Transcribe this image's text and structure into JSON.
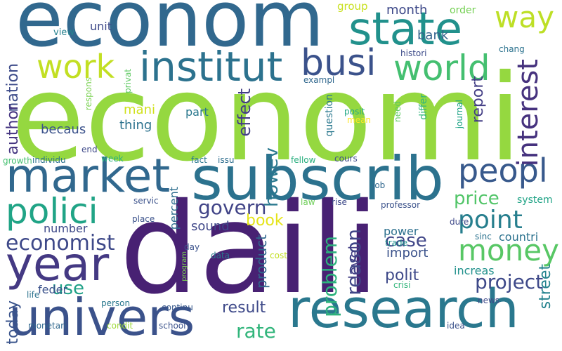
{
  "words": [
    {
      "text": "econom",
      "color": "#31688e",
      "vertical": false
    },
    {
      "text": "economi",
      "color": "#95d840",
      "vertical": false
    },
    {
      "text": "daili",
      "color": "#482173",
      "vertical": false
    },
    {
      "text": "subscrib",
      "color": "#2c728e",
      "vertical": false
    },
    {
      "text": "research",
      "color": "#2a788e",
      "vertical": false
    },
    {
      "text": "univers",
      "color": "#3b528b",
      "vertical": false
    },
    {
      "text": "market",
      "color": "#31688e",
      "vertical": false
    },
    {
      "text": "state",
      "color": "#21918c",
      "vertical": false
    },
    {
      "text": "institut",
      "color": "#2c728e",
      "vertical": false
    },
    {
      "text": "year",
      "color": "#443983",
      "vertical": false
    },
    {
      "text": "polici",
      "color": "#20a486",
      "vertical": false
    },
    {
      "text": "busi",
      "color": "#3b528b",
      "vertical": false
    },
    {
      "text": "work",
      "color": "#c2df23",
      "vertical": false
    },
    {
      "text": "world",
      "color": "#44bf70",
      "vertical": false
    },
    {
      "text": "way",
      "color": "#bddf26",
      "vertical": false
    },
    {
      "text": "peopl",
      "color": "#38598c",
      "vertical": false
    },
    {
      "text": "money",
      "color": "#58c765",
      "vertical": false
    },
    {
      "text": "interest",
      "color": "#46327e",
      "vertical": true
    },
    {
      "text": "point",
      "color": "#277f8e",
      "vertical": false
    },
    {
      "text": "economist",
      "color": "#3e4989",
      "vertical": false
    },
    {
      "text": "govern",
      "color": "#414487",
      "vertical": false
    },
    {
      "text": "price",
      "color": "#52c569",
      "vertical": false
    },
    {
      "text": "rate",
      "color": "#31b57b",
      "vertical": false
    },
    {
      "text": "project",
      "color": "#3e4989",
      "vertical": false
    },
    {
      "text": "use",
      "color": "#1fa187",
      "vertical": false
    },
    {
      "text": "problem",
      "color": "#2db27d",
      "vertical": true
    },
    {
      "text": "reason",
      "color": "#404688",
      "vertical": true
    },
    {
      "text": "case",
      "color": "#404688",
      "vertical": false
    },
    {
      "text": "result",
      "color": "#3e4989",
      "vertical": false
    },
    {
      "text": "book",
      "color": "#e5e419",
      "vertical": false
    },
    {
      "text": "nation",
      "color": "#3e4c8a",
      "vertical": true
    },
    {
      "text": "howev",
      "color": "#2a788e",
      "vertical": true
    },
    {
      "text": "effect",
      "color": "#433e85",
      "vertical": true
    },
    {
      "text": "polit",
      "color": "#3e4989",
      "vertical": false
    },
    {
      "text": "report",
      "color": "#433e85",
      "vertical": true
    },
    {
      "text": "street",
      "color": "#25838e",
      "vertical": true
    },
    {
      "text": "author",
      "color": "#453581",
      "vertical": true
    },
    {
      "text": "today",
      "color": "#3a548c",
      "vertical": true
    },
    {
      "text": "month",
      "color": "#3e4989",
      "vertical": false
    },
    {
      "text": "bank",
      "color": "#33638d",
      "vertical": false
    },
    {
      "text": "becaus",
      "color": "#3b528b",
      "vertical": false
    },
    {
      "text": "mani",
      "color": "#d0e11c",
      "vertical": false
    },
    {
      "text": "thing",
      "color": "#2c728e",
      "vertical": false
    },
    {
      "text": "sound",
      "color": "#3f4788",
      "vertical": false
    },
    {
      "text": "product",
      "color": "#31688e",
      "vertical": true
    },
    {
      "text": "import",
      "color": "#3b528b",
      "vertical": false
    },
    {
      "text": "level",
      "color": "#433e85",
      "vertical": true
    },
    {
      "text": "number",
      "color": "#3e4989",
      "vertical": false
    },
    {
      "text": "feder",
      "color": "#3b528b",
      "vertical": false
    },
    {
      "text": "percent",
      "color": "#2e6e8e",
      "vertical": true
    },
    {
      "text": "power",
      "color": "#2d708e",
      "vertical": false
    },
    {
      "text": "countri",
      "color": "#2c728e",
      "vertical": false
    },
    {
      "text": "increas",
      "color": "#21918c",
      "vertical": false
    },
    {
      "text": "system",
      "color": "#20a386",
      "vertical": false
    },
    {
      "text": "unit",
      "color": "#3e4989",
      "vertical": false
    },
    {
      "text": "part",
      "color": "#2a788e",
      "vertical": false
    },
    {
      "text": "group",
      "color": "#c8e020",
      "vertical": false
    },
    {
      "text": "order",
      "color": "#75d054",
      "vertical": false
    },
    {
      "text": "view",
      "color": "#26818e",
      "vertical": false
    },
    {
      "text": "chang",
      "color": "#2c728e",
      "vertical": false
    },
    {
      "text": "histori",
      "color": "#3e4c8a",
      "vertical": false
    },
    {
      "text": "exampl",
      "color": "#31688e",
      "vertical": false
    },
    {
      "text": "privat",
      "color": "#5ec962",
      "vertical": true
    },
    {
      "text": "respons",
      "color": "#7ad151",
      "vertical": true
    },
    {
      "text": "differ",
      "color": "#31b57b",
      "vertical": true
    },
    {
      "text": "question",
      "color": "#2a788e",
      "vertical": true
    },
    {
      "text": "posit",
      "color": "#22a884",
      "vertical": false
    },
    {
      "text": "mean",
      "color": "#fde725",
      "vertical": false
    },
    {
      "text": "need",
      "color": "#5ec962",
      "vertical": true
    },
    {
      "text": "journal",
      "color": "#20a486",
      "vertical": true
    },
    {
      "text": "end",
      "color": "#3e4989",
      "vertical": false
    },
    {
      "text": "growth",
      "color": "#44bf70",
      "vertical": false
    },
    {
      "text": "individu",
      "color": "#2c728e",
      "vertical": false
    },
    {
      "text": "week",
      "color": "#2ab07f",
      "vertical": false
    },
    {
      "text": "fact",
      "color": "#2a788e",
      "vertical": false
    },
    {
      "text": "issu",
      "color": "#2e6e8e",
      "vertical": false
    },
    {
      "text": "fellow",
      "color": "#29af7f",
      "vertical": false
    },
    {
      "text": "cours",
      "color": "#3e4c8a",
      "vertical": false
    },
    {
      "text": "servic",
      "color": "#3b528b",
      "vertical": false
    },
    {
      "text": "place",
      "color": "#3b528b",
      "vertical": false
    },
    {
      "text": "law",
      "color": "#6ece58",
      "vertical": false
    },
    {
      "text": "rise",
      "color": "#3e4989",
      "vertical": false
    },
    {
      "text": "job",
      "color": "#31688e",
      "vertical": false
    },
    {
      "text": "professor",
      "color": "#3b528b",
      "vertical": false
    },
    {
      "text": "dure",
      "color": "#3e4989",
      "vertical": false
    },
    {
      "text": "sinc",
      "color": "#2c728e",
      "vertical": false
    },
    {
      "text": "trade",
      "color": "#21918c",
      "vertical": false
    },
    {
      "text": "day",
      "color": "#3b528b",
      "vertical": false
    },
    {
      "text": "data",
      "color": "#2a788e",
      "vertical": false
    },
    {
      "text": "cost",
      "color": "#c2df23",
      "vertical": false
    },
    {
      "text": "program",
      "color": "#7ad151",
      "vertical": true
    },
    {
      "text": "crisi",
      "color": "#31b57b",
      "vertical": false
    },
    {
      "text": "life",
      "color": "#2c728e",
      "vertical": false
    },
    {
      "text": "person",
      "color": "#2a788e",
      "vertical": false
    },
    {
      "text": "continu",
      "color": "#38598c",
      "vertical": false
    },
    {
      "text": "news",
      "color": "#3e4989",
      "vertical": false
    },
    {
      "text": "monetari",
      "color": "#31688e",
      "vertical": false
    },
    {
      "text": "condit",
      "color": "#9fda3a",
      "vertical": false
    },
    {
      "text": "school",
      "color": "#3b528b",
      "vertical": false
    },
    {
      "text": "idea",
      "color": "#3b528b",
      "vertical": false
    }
  ]
}
